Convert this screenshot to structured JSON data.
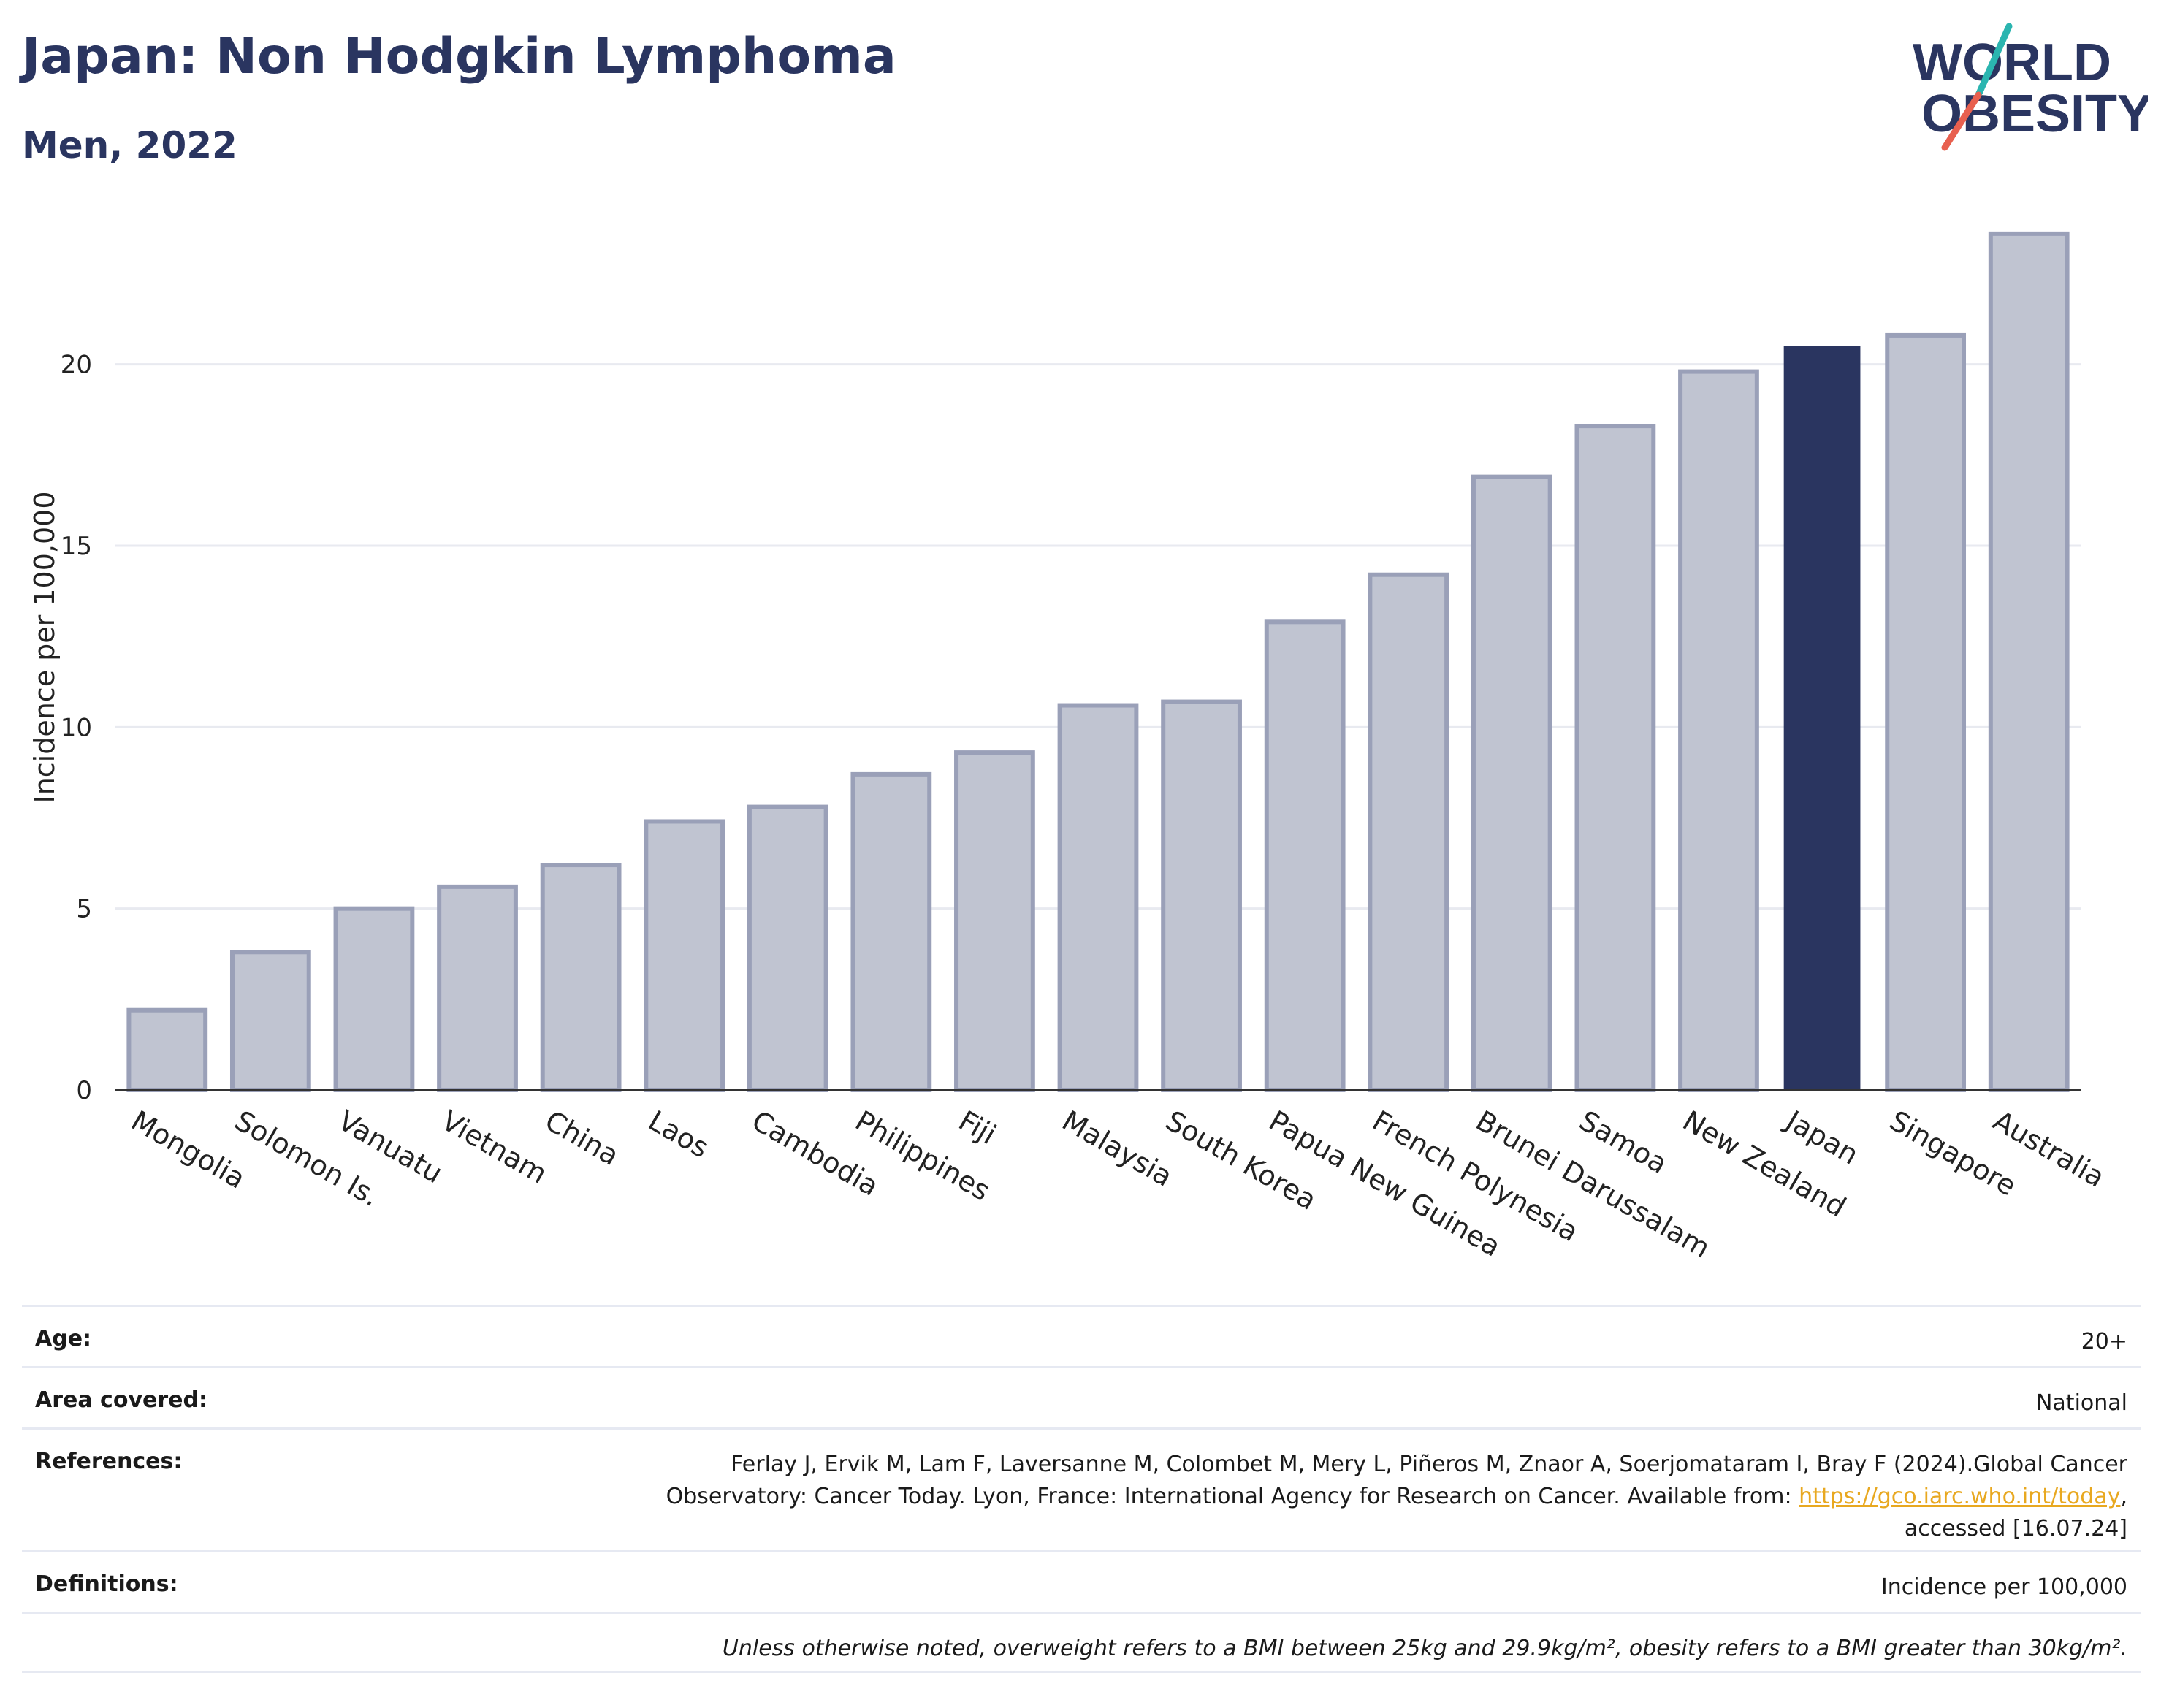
{
  "header": {
    "title": "Japan: Non Hodgkin Lymphoma",
    "subtitle": "Men, 2022"
  },
  "logo": {
    "line1": "WORLD",
    "line2": "OBESITY",
    "colors": {
      "text": "#2a3560",
      "slash_top": "#2bb5b0",
      "slash_bottom": "#e8604f"
    }
  },
  "chart_data": {
    "type": "bar",
    "ylabel": "Incidence per 100,000",
    "xlabel": "",
    "ylim": [
      0,
      24
    ],
    "yticks": [
      0,
      5,
      10,
      15,
      20
    ],
    "grid": true,
    "categories": [
      "Mongolia",
      "Solomon Is.",
      "Vanuatu",
      "Vietnam",
      "China",
      "Laos",
      "Cambodia",
      "Philippines",
      "Fiji",
      "Malaysia",
      "South Korea",
      "Papua New Guinea",
      "French Polynesia",
      "Brunei Darussalam",
      "Samoa",
      "New Zealand",
      "Japan",
      "Singapore",
      "Australia"
    ],
    "values": [
      2.2,
      3.8,
      5.0,
      5.6,
      6.2,
      7.4,
      7.8,
      8.7,
      9.3,
      10.6,
      10.7,
      12.9,
      14.2,
      16.9,
      18.3,
      19.8,
      20.5,
      20.8,
      23.6
    ],
    "highlight": "Japan",
    "colors": {
      "bar": "#c0c4d1",
      "bar_edge": "#9aa0b8",
      "highlight": "#2a3560",
      "grid": "#e8eaf0",
      "axis": "#333333"
    }
  },
  "info": {
    "age": {
      "label": "Age:",
      "value": "20+"
    },
    "area": {
      "label": "Area covered:",
      "value": "National"
    },
    "references": {
      "label": "References:",
      "line1": "Ferlay J, Ervik M, Lam F, Laversanne M, Colombet M, Mery L, Piñeros M, Znaor A, Soerjomataram I, Bray F (2024).Global Cancer",
      "line2_pre": "Observatory: Cancer Today. Lyon, France: International Agency for Research on Cancer. Available from: ",
      "link": "https://gco.iarc.who.int/today",
      "line2_post": ",",
      "line3": "accessed [16.07.24]"
    },
    "definitions": {
      "label": "Definitions:",
      "value": "Incidence per 100,000"
    },
    "note": "Unless otherwise noted, overweight refers to a BMI between 25kg and 29.9kg/m², obesity refers to a BMI greater than 30kg/m²."
  }
}
